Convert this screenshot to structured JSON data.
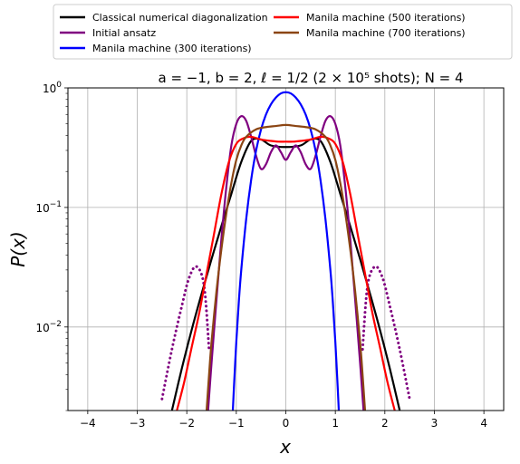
{
  "chart_data": {
    "type": "line",
    "title": "a = −1, b = 2, ℓ = 1/2 (2 × 10⁵ shots); N = 4",
    "xlabel": "x",
    "ylabel": "P(x)",
    "xlim": [
      -4.4,
      4.4
    ],
    "ylim": [
      0.002,
      1.0
    ],
    "yscale": "log",
    "grid": true,
    "legend_position": "top",
    "x_ticks": [
      -4,
      -3,
      -2,
      -1,
      0,
      1,
      2,
      3,
      4
    ],
    "x_tick_labels": [
      "−4",
      "−3",
      "−2",
      "−1",
      "0",
      "1",
      "2",
      "3",
      "4"
    ],
    "y_ticks": [
      0.01,
      0.1,
      1.0
    ],
    "y_tick_labels": [
      {
        "base": "10",
        "exp": "−2"
      },
      {
        "base": "10",
        "exp": "−1"
      },
      {
        "base": "10",
        "exp": "0"
      }
    ],
    "series": [
      {
        "name": "Classical numerical diagonalization",
        "color": "#000000",
        "style": "solid",
        "x": [
          -2.3,
          -2.1,
          -1.9,
          -1.7,
          -1.5,
          -1.3,
          -1.1,
          -0.9,
          -0.7,
          -0.5,
          -0.3,
          0,
          0.3,
          0.5,
          0.7,
          0.9,
          1.1,
          1.3,
          1.5,
          1.7,
          1.9,
          2.1,
          2.3
        ],
        "y": [
          0.002,
          0.0045,
          0.0095,
          0.019,
          0.037,
          0.07,
          0.13,
          0.24,
          0.36,
          0.37,
          0.33,
          0.32,
          0.33,
          0.37,
          0.36,
          0.24,
          0.13,
          0.07,
          0.037,
          0.019,
          0.0095,
          0.0045,
          0.002
        ]
      },
      {
        "name": "Initial ansatz",
        "color": "#800080",
        "style": "solid",
        "x": [
          -1.57,
          -1.5,
          -1.4,
          -1.3,
          -1.2,
          -1.1,
          -1.0,
          -0.9,
          -0.8,
          -0.7,
          -0.6,
          -0.5,
          -0.4,
          -0.3,
          -0.2,
          -0.1,
          0,
          0.1,
          0.2,
          0.3,
          0.4,
          0.5,
          0.6,
          0.7,
          0.8,
          0.9,
          1.0,
          1.1,
          1.2,
          1.3,
          1.4,
          1.5,
          1.57
        ],
        "y": [
          0.002,
          0.005,
          0.017,
          0.055,
          0.15,
          0.33,
          0.5,
          0.58,
          0.53,
          0.39,
          0.27,
          0.21,
          0.23,
          0.29,
          0.33,
          0.29,
          0.25,
          0.29,
          0.33,
          0.29,
          0.23,
          0.21,
          0.27,
          0.39,
          0.53,
          0.58,
          0.5,
          0.33,
          0.15,
          0.055,
          0.017,
          0.005,
          0.002
        ]
      },
      {
        "name": "Initial ansatz (tails)",
        "color": "#800080",
        "style": "dotted",
        "x": [
          -2.5,
          -2.3,
          -2.1,
          -1.95,
          -1.8,
          -1.65,
          -1.55
        ],
        "y": [
          0.0025,
          0.0065,
          0.015,
          0.026,
          0.032,
          0.022,
          0.0065
        ]
      },
      {
        "name": "Initial ansatz (tails)",
        "color": "#800080",
        "style": "dotted",
        "x": [
          1.55,
          1.65,
          1.8,
          1.95,
          2.1,
          2.3,
          2.5
        ],
        "y": [
          0.0065,
          0.022,
          0.032,
          0.026,
          0.015,
          0.0065,
          0.0025
        ]
      },
      {
        "name": "Manila machine (300 iterations)",
        "color": "#0000ff",
        "style": "solid",
        "x": [
          -1.07,
          -1.05,
          -1.0,
          -0.95,
          -0.9,
          -0.8,
          -0.7,
          -0.6,
          -0.5,
          -0.4,
          -0.3,
          -0.2,
          -0.1,
          0,
          0.1,
          0.2,
          0.3,
          0.4,
          0.5,
          0.6,
          0.7,
          0.8,
          0.9,
          0.95,
          1.0,
          1.05,
          1.07
        ],
        "y": [
          0.002,
          0.003,
          0.0075,
          0.016,
          0.03,
          0.08,
          0.17,
          0.3,
          0.45,
          0.6,
          0.73,
          0.83,
          0.9,
          0.92,
          0.9,
          0.83,
          0.73,
          0.6,
          0.45,
          0.3,
          0.17,
          0.08,
          0.03,
          0.016,
          0.0075,
          0.003,
          0.002
        ]
      },
      {
        "name": "Manila machine (500 iterations)",
        "color": "#ff0000",
        "style": "solid",
        "x": [
          -2.2,
          -2.05,
          -1.9,
          -1.75,
          -1.6,
          -1.45,
          -1.3,
          -1.15,
          -1.0,
          -0.85,
          -0.7,
          -0.5,
          -0.3,
          -0.15,
          0,
          0.15,
          0.3,
          0.5,
          0.7,
          0.85,
          1.0,
          1.15,
          1.3,
          1.45,
          1.6,
          1.75,
          1.9,
          2.05,
          2.2
        ],
        "y": [
          0.002,
          0.0035,
          0.0068,
          0.013,
          0.028,
          0.06,
          0.13,
          0.24,
          0.34,
          0.38,
          0.39,
          0.37,
          0.36,
          0.355,
          0.355,
          0.355,
          0.36,
          0.37,
          0.39,
          0.38,
          0.34,
          0.24,
          0.13,
          0.06,
          0.028,
          0.013,
          0.0068,
          0.0035,
          0.002
        ]
      },
      {
        "name": "Manila machine (700 iterations)",
        "color": "#8b4513",
        "style": "solid",
        "x": [
          -1.6,
          -1.55,
          -1.5,
          -1.4,
          -1.3,
          -1.2,
          -1.1,
          -1.0,
          -0.9,
          -0.8,
          -0.6,
          -0.4,
          -0.2,
          0,
          0.2,
          0.4,
          0.6,
          0.8,
          0.9,
          1.0,
          1.1,
          1.2,
          1.3,
          1.4,
          1.5,
          1.55,
          1.6
        ],
        "y": [
          0.002,
          0.004,
          0.0075,
          0.02,
          0.045,
          0.09,
          0.16,
          0.25,
          0.33,
          0.39,
          0.45,
          0.47,
          0.48,
          0.49,
          0.48,
          0.47,
          0.45,
          0.39,
          0.33,
          0.25,
          0.16,
          0.09,
          0.045,
          0.02,
          0.0075,
          0.004,
          0.002
        ]
      }
    ],
    "legend": [
      {
        "label": "Classical numerical diagonalization",
        "color": "#000000"
      },
      {
        "label": "Initial ansatz",
        "color": "#800080"
      },
      {
        "label": "Manila machine (300 iterations)",
        "color": "#0000ff"
      },
      {
        "label": "Manila machine (500 iterations)",
        "color": "#ff0000"
      },
      {
        "label": "Manila machine (700 iterations)",
        "color": "#8b4513"
      }
    ]
  }
}
